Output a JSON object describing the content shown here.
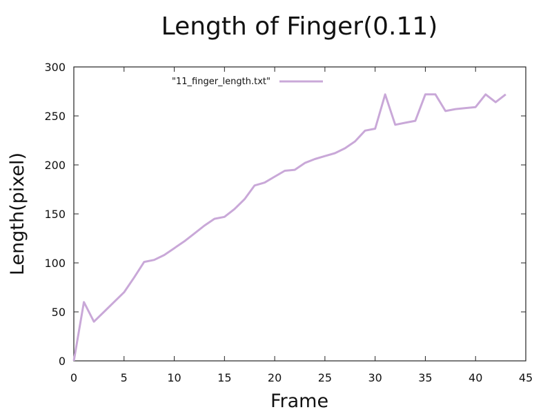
{
  "colors": {
    "series": "#c9a8d8",
    "axis": "#222222",
    "background": "#ffffff"
  },
  "chart_data": {
    "type": "line",
    "title": "Length of Finger(0.11)",
    "xlabel": "Frame",
    "ylabel": "Length(pixel)",
    "xlim": [
      0,
      45
    ],
    "ylim": [
      0,
      300
    ],
    "xticks": [
      0,
      5,
      10,
      15,
      20,
      25,
      30,
      35,
      40,
      45
    ],
    "yticks": [
      0,
      50,
      100,
      150,
      200,
      250,
      300
    ],
    "grid": false,
    "legend": "top-left",
    "series": [
      {
        "name": "\"11_finger_length.txt\"",
        "x": [
          0,
          1,
          2,
          3,
          4,
          5,
          6,
          7,
          8,
          9,
          10,
          11,
          12,
          13,
          14,
          15,
          16,
          17,
          18,
          19,
          20,
          21,
          22,
          23,
          24,
          25,
          26,
          27,
          28,
          29,
          30,
          31,
          32,
          33,
          34,
          35,
          36,
          37,
          38,
          39,
          40,
          41,
          42,
          43
        ],
        "y": [
          0,
          60,
          40,
          50,
          60,
          70,
          85,
          101,
          103,
          108,
          115,
          122,
          130,
          138,
          145,
          147,
          155,
          165,
          179,
          182,
          188,
          194,
          195,
          202,
          206,
          209,
          212,
          217,
          224,
          235,
          237,
          272,
          241,
          243,
          245,
          272,
          272,
          255,
          257,
          258,
          259,
          272,
          264,
          272
        ]
      }
    ]
  }
}
